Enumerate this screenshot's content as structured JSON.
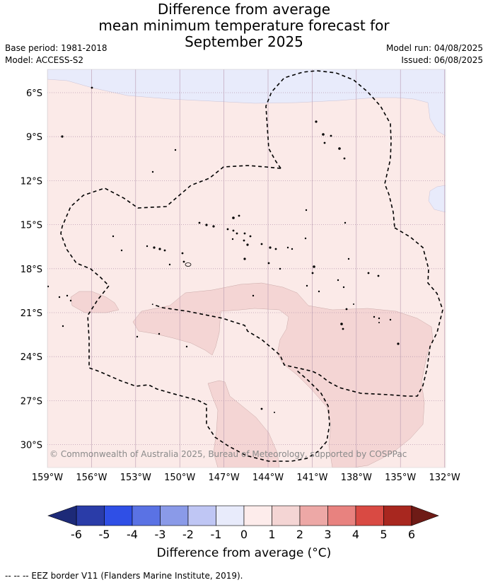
{
  "title": {
    "line1": "Difference from average",
    "line2": "mean minimum temperature forecast for",
    "line3": "September 2025"
  },
  "meta": {
    "base_period": "Base period: 1981-2018",
    "model": "Model: ACCESS-S2",
    "model_run": "Model run: 04/08/2025",
    "issued": "Issued: 06/08/2025"
  },
  "map": {
    "lat_labels": [
      "6°S",
      "9°S",
      "12°S",
      "15°S",
      "18°S",
      "21°S",
      "24°S",
      "27°S",
      "30°S"
    ],
    "lon_labels": [
      "159°W",
      "156°W",
      "153°W",
      "150°W",
      "147°W",
      "144°W",
      "141°W",
      "138°W",
      "135°W",
      "132°W"
    ],
    "copyright": "© Commonwealth of Australia 2025, Bureau of Meteorology, supported by COSPPac"
  },
  "colorbar": {
    "ticks": [
      "-6",
      "-5",
      "-4",
      "-3",
      "-2",
      "-1",
      "0",
      "1",
      "2",
      "3",
      "4",
      "5",
      "6"
    ],
    "colors": [
      "#2a3ca8",
      "#2f4fe6",
      "#5a72e4",
      "#8a9ae8",
      "#bfc6f4",
      "#e8ebfb",
      "#fdeceb",
      "#f4d5d4",
      "#eda8a6",
      "#e8827f",
      "#d94a43",
      "#a8271f"
    ],
    "under_color": "#1d2a78",
    "over_color": "#6e1b16",
    "label": "Difference from average (°C)"
  },
  "footnote": "-- -- -- EEZ border V11 (Flanders Marine Institute, 2019).",
  "colors": {
    "background_field": "#fbeae8",
    "warm_patch": "#f4d5d4",
    "cool_patch": "#e8ebfb",
    "grid": "#b99ab0"
  }
}
